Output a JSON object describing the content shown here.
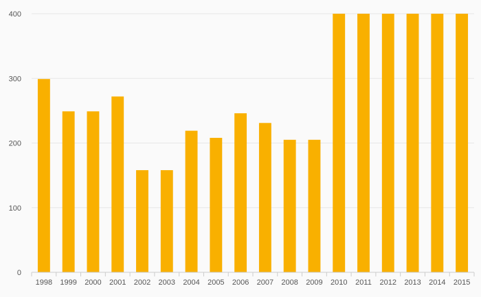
{
  "chart_data": {
    "type": "bar",
    "title": "",
    "xlabel": "",
    "ylabel": "",
    "categories": [
      "1998",
      "1999",
      "2000",
      "2001",
      "2002",
      "2003",
      "2004",
      "2005",
      "2006",
      "2007",
      "2008",
      "2009",
      "2010",
      "2011",
      "2012",
      "2013",
      "2014",
      "2015"
    ],
    "values": [
      299,
      249,
      249,
      272,
      158,
      158,
      219,
      208,
      246,
      231,
      205,
      205,
      400,
      400,
      400,
      400,
      400,
      400
    ],
    "ylim": [
      0,
      400
    ],
    "yticks": [
      0,
      100,
      200,
      300,
      400
    ],
    "grid": true,
    "legend": "none",
    "bar_color": "#f9b000",
    "grid_color": "#e6e6e6"
  }
}
